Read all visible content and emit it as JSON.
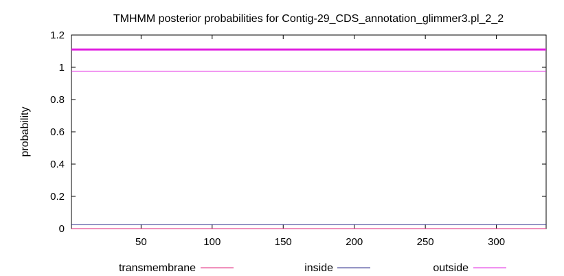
{
  "chart_data": {
    "type": "line",
    "title": "TMHMM posterior probabilities for Contig-29_CDS_annotation_glimmer3.pl_2_2",
    "xlabel": "",
    "ylabel": "probability",
    "xlim": [
      1,
      335
    ],
    "ylim": [
      0,
      1.2
    ],
    "x_ticks": [
      50,
      100,
      150,
      200,
      250,
      300
    ],
    "y_ticks": [
      0,
      0.2,
      0.4,
      0.6,
      0.8,
      1,
      1.2
    ],
    "x_tick_labels": [
      "50",
      "100",
      "150",
      "200",
      "250",
      "300"
    ],
    "y_tick_labels": [
      "0",
      "0.2",
      "0.4",
      "0.6",
      "0.8",
      "1",
      "1.2"
    ],
    "grid": false,
    "legend_position": "bottom",
    "series": [
      {
        "name": "transmembrane",
        "color": "#e0207a",
        "x": [
          1,
          335
        ],
        "y": [
          0,
          0
        ]
      },
      {
        "name": "inside",
        "color": "#2a2a8a",
        "x": [
          1,
          335
        ],
        "y": [
          0.025,
          0.025
        ]
      },
      {
        "name": "outside",
        "color": "#e020e0",
        "x": [
          1,
          335
        ],
        "y": [
          0.975,
          0.975
        ]
      }
    ],
    "annotations": [
      {
        "type": "hline",
        "y": 1.11,
        "color": "#e020e0"
      }
    ]
  }
}
